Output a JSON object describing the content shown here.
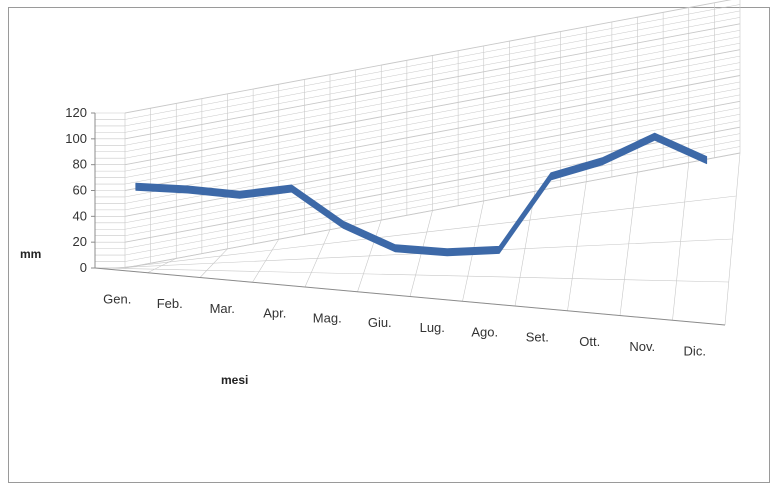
{
  "chart_data": {
    "type": "line",
    "title": "",
    "xlabel": "mesi",
    "ylabel": "mm",
    "ylim": [
      0,
      120
    ],
    "yticks": [
      "0",
      "20",
      "40",
      "60",
      "80",
      "100",
      "120"
    ],
    "categories": [
      "Gen.",
      "Feb.",
      "Mar.",
      "Apr.",
      "Mag.",
      "Giu.",
      "Lug.",
      "Ago.",
      "Set.",
      "Ott.",
      "Nov.",
      "Dic."
    ],
    "series": [
      {
        "values": [
          62,
          58,
          52,
          55,
          25,
          5,
          0,
          0,
          55,
          65,
          82,
          62
        ]
      }
    ],
    "grid": true,
    "legend": "none",
    "three_d": true,
    "colors": {
      "line": "#3d69a8",
      "grid": "#c8c8c8",
      "axis": "#8c8c8c",
      "frame": "#9a9a9a"
    }
  }
}
